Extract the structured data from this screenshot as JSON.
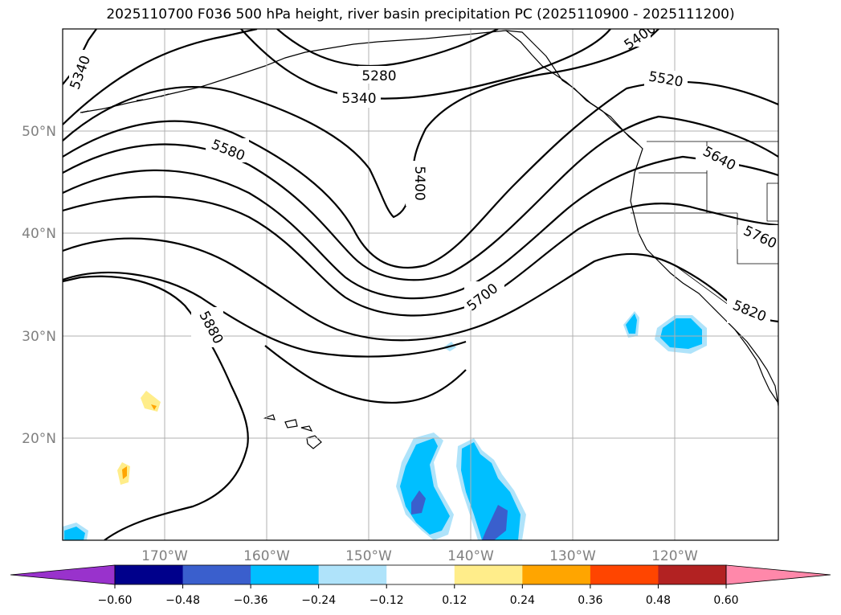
{
  "title": "2025110700 F036 500 hPa height, river basin precipitation PC (2025110900 - 2025111200)",
  "map": {
    "lat_labels": [
      "50°N",
      "40°N",
      "30°N",
      "20°N"
    ],
    "lon_labels": [
      "170°W",
      "160°W",
      "150°W",
      "140°W",
      "130°W",
      "120°W"
    ],
    "contour_labels": [
      "5340",
      "5280",
      "5340",
      "5400",
      "5400",
      "5520",
      "5580",
      "5640",
      "5760",
      "5700",
      "5820",
      "5880"
    ]
  },
  "colorbar": {
    "colors": [
      "#9932cc",
      "#00008b",
      "#3a5fcd",
      "#00bfff",
      "#afe3fa",
      "#ffffff",
      "#ffed8a",
      "#ffa500",
      "#ff4500",
      "#b22222",
      "#ff88aa"
    ],
    "tick_labels": [
      "−0.60",
      "−0.48",
      "−0.36",
      "−0.24",
      "−0.12",
      "0.12",
      "0.24",
      "0.36",
      "0.48",
      "0.60"
    ]
  },
  "colors": {
    "grid": "#b0b0b0",
    "contour": "#000000",
    "precip_light_blue": "#afe3fa",
    "precip_blue": "#00bfff",
    "precip_dark_blue": "#3a5fcd",
    "precip_yellow": "#ffed8a",
    "precip_orange": "#ffa500"
  }
}
